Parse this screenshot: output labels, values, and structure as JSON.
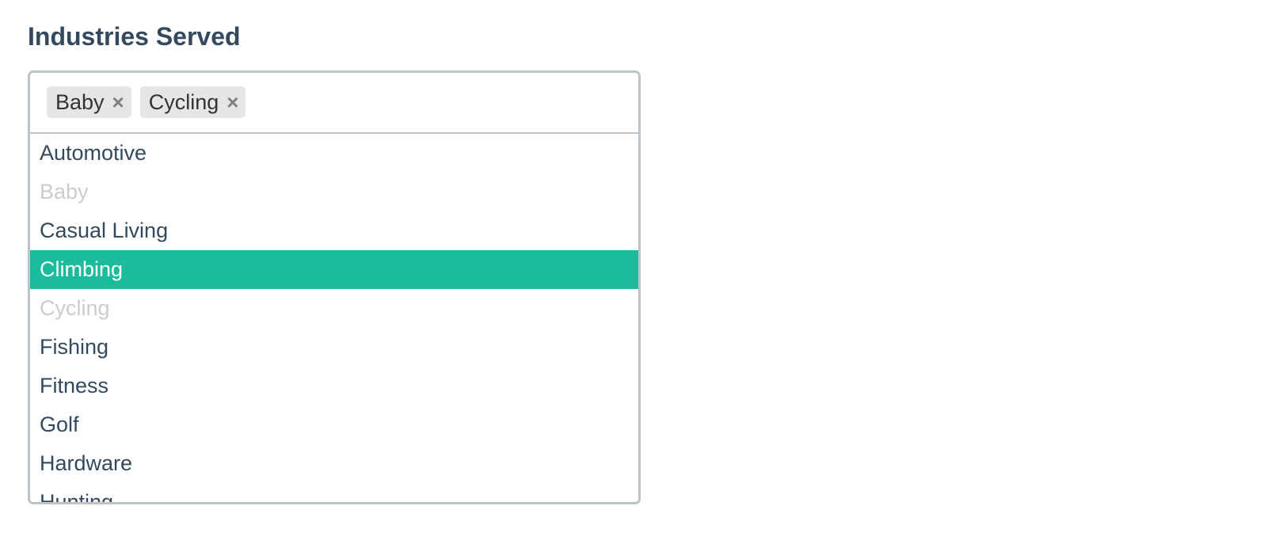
{
  "label": "Industries Served",
  "selected_tags": [
    {
      "label": "Baby",
      "remove_icon": "×"
    },
    {
      "label": "Cycling",
      "remove_icon": "×"
    }
  ],
  "options": [
    {
      "label": "Automotive",
      "state": "normal"
    },
    {
      "label": "Baby",
      "state": "disabled"
    },
    {
      "label": "Casual Living",
      "state": "normal"
    },
    {
      "label": "Climbing",
      "state": "highlighted"
    },
    {
      "label": "Cycling",
      "state": "disabled"
    },
    {
      "label": "Fishing",
      "state": "normal"
    },
    {
      "label": "Fitness",
      "state": "normal"
    },
    {
      "label": "Golf",
      "state": "normal"
    },
    {
      "label": "Hardware",
      "state": "normal"
    },
    {
      "label": "Hunting",
      "state": "normal"
    }
  ],
  "colors": {
    "text": "#34495e",
    "highlight": "#1abc9c",
    "disabled_text": "#cccccc",
    "tag_bg": "#e6e6e6",
    "border": "#bdc3c7"
  }
}
